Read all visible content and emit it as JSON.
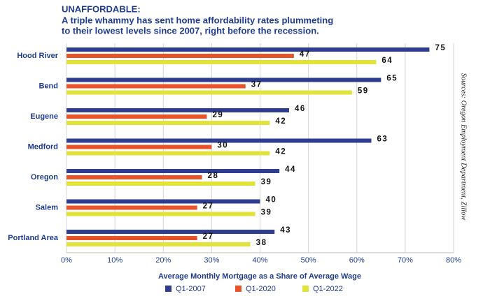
{
  "chart_data": {
    "type": "bar",
    "orientation": "horizontal",
    "title": "UNAFFORDABLE:",
    "subtitle": [
      "A triple whammy has sent home affordability rates plummeting",
      "to their lowest levels since 2007, right before the recession."
    ],
    "x_label": "Average Monthly Mortgage as a Share of Average Wage",
    "source": "Sources: Oregon Employment Department, Zillow",
    "categories": [
      "Hood River",
      "Bend",
      "Eugene",
      "Medford",
      "Oregon",
      "Salem",
      "Portland Area"
    ],
    "series": [
      {
        "name": "Q1-2007",
        "color": "#2e3d8f",
        "values": [
          75,
          65,
          46,
          63,
          44,
          40,
          43
        ]
      },
      {
        "name": "Q1-2020",
        "color": "#e8542a",
        "values": [
          47,
          37,
          29,
          30,
          28,
          27,
          27
        ]
      },
      {
        "name": "Q1-2022",
        "color": "#e2e33a",
        "values": [
          64,
          59,
          42,
          42,
          39,
          39,
          38
        ]
      }
    ],
    "xlim": [
      0,
      80
    ],
    "xticks": [
      {
        "value": 0,
        "label": "0%"
      },
      {
        "value": 10,
        "label": "10%"
      },
      {
        "value": 20,
        "label": "20%"
      },
      {
        "value": 30,
        "label": "30%"
      },
      {
        "value": 40,
        "label": "40%"
      },
      {
        "value": 50,
        "label": "50%"
      },
      {
        "value": 60,
        "label": "60%"
      },
      {
        "value": 70,
        "label": "70%"
      },
      {
        "value": 80,
        "label": "80%"
      }
    ],
    "grid": true
  }
}
